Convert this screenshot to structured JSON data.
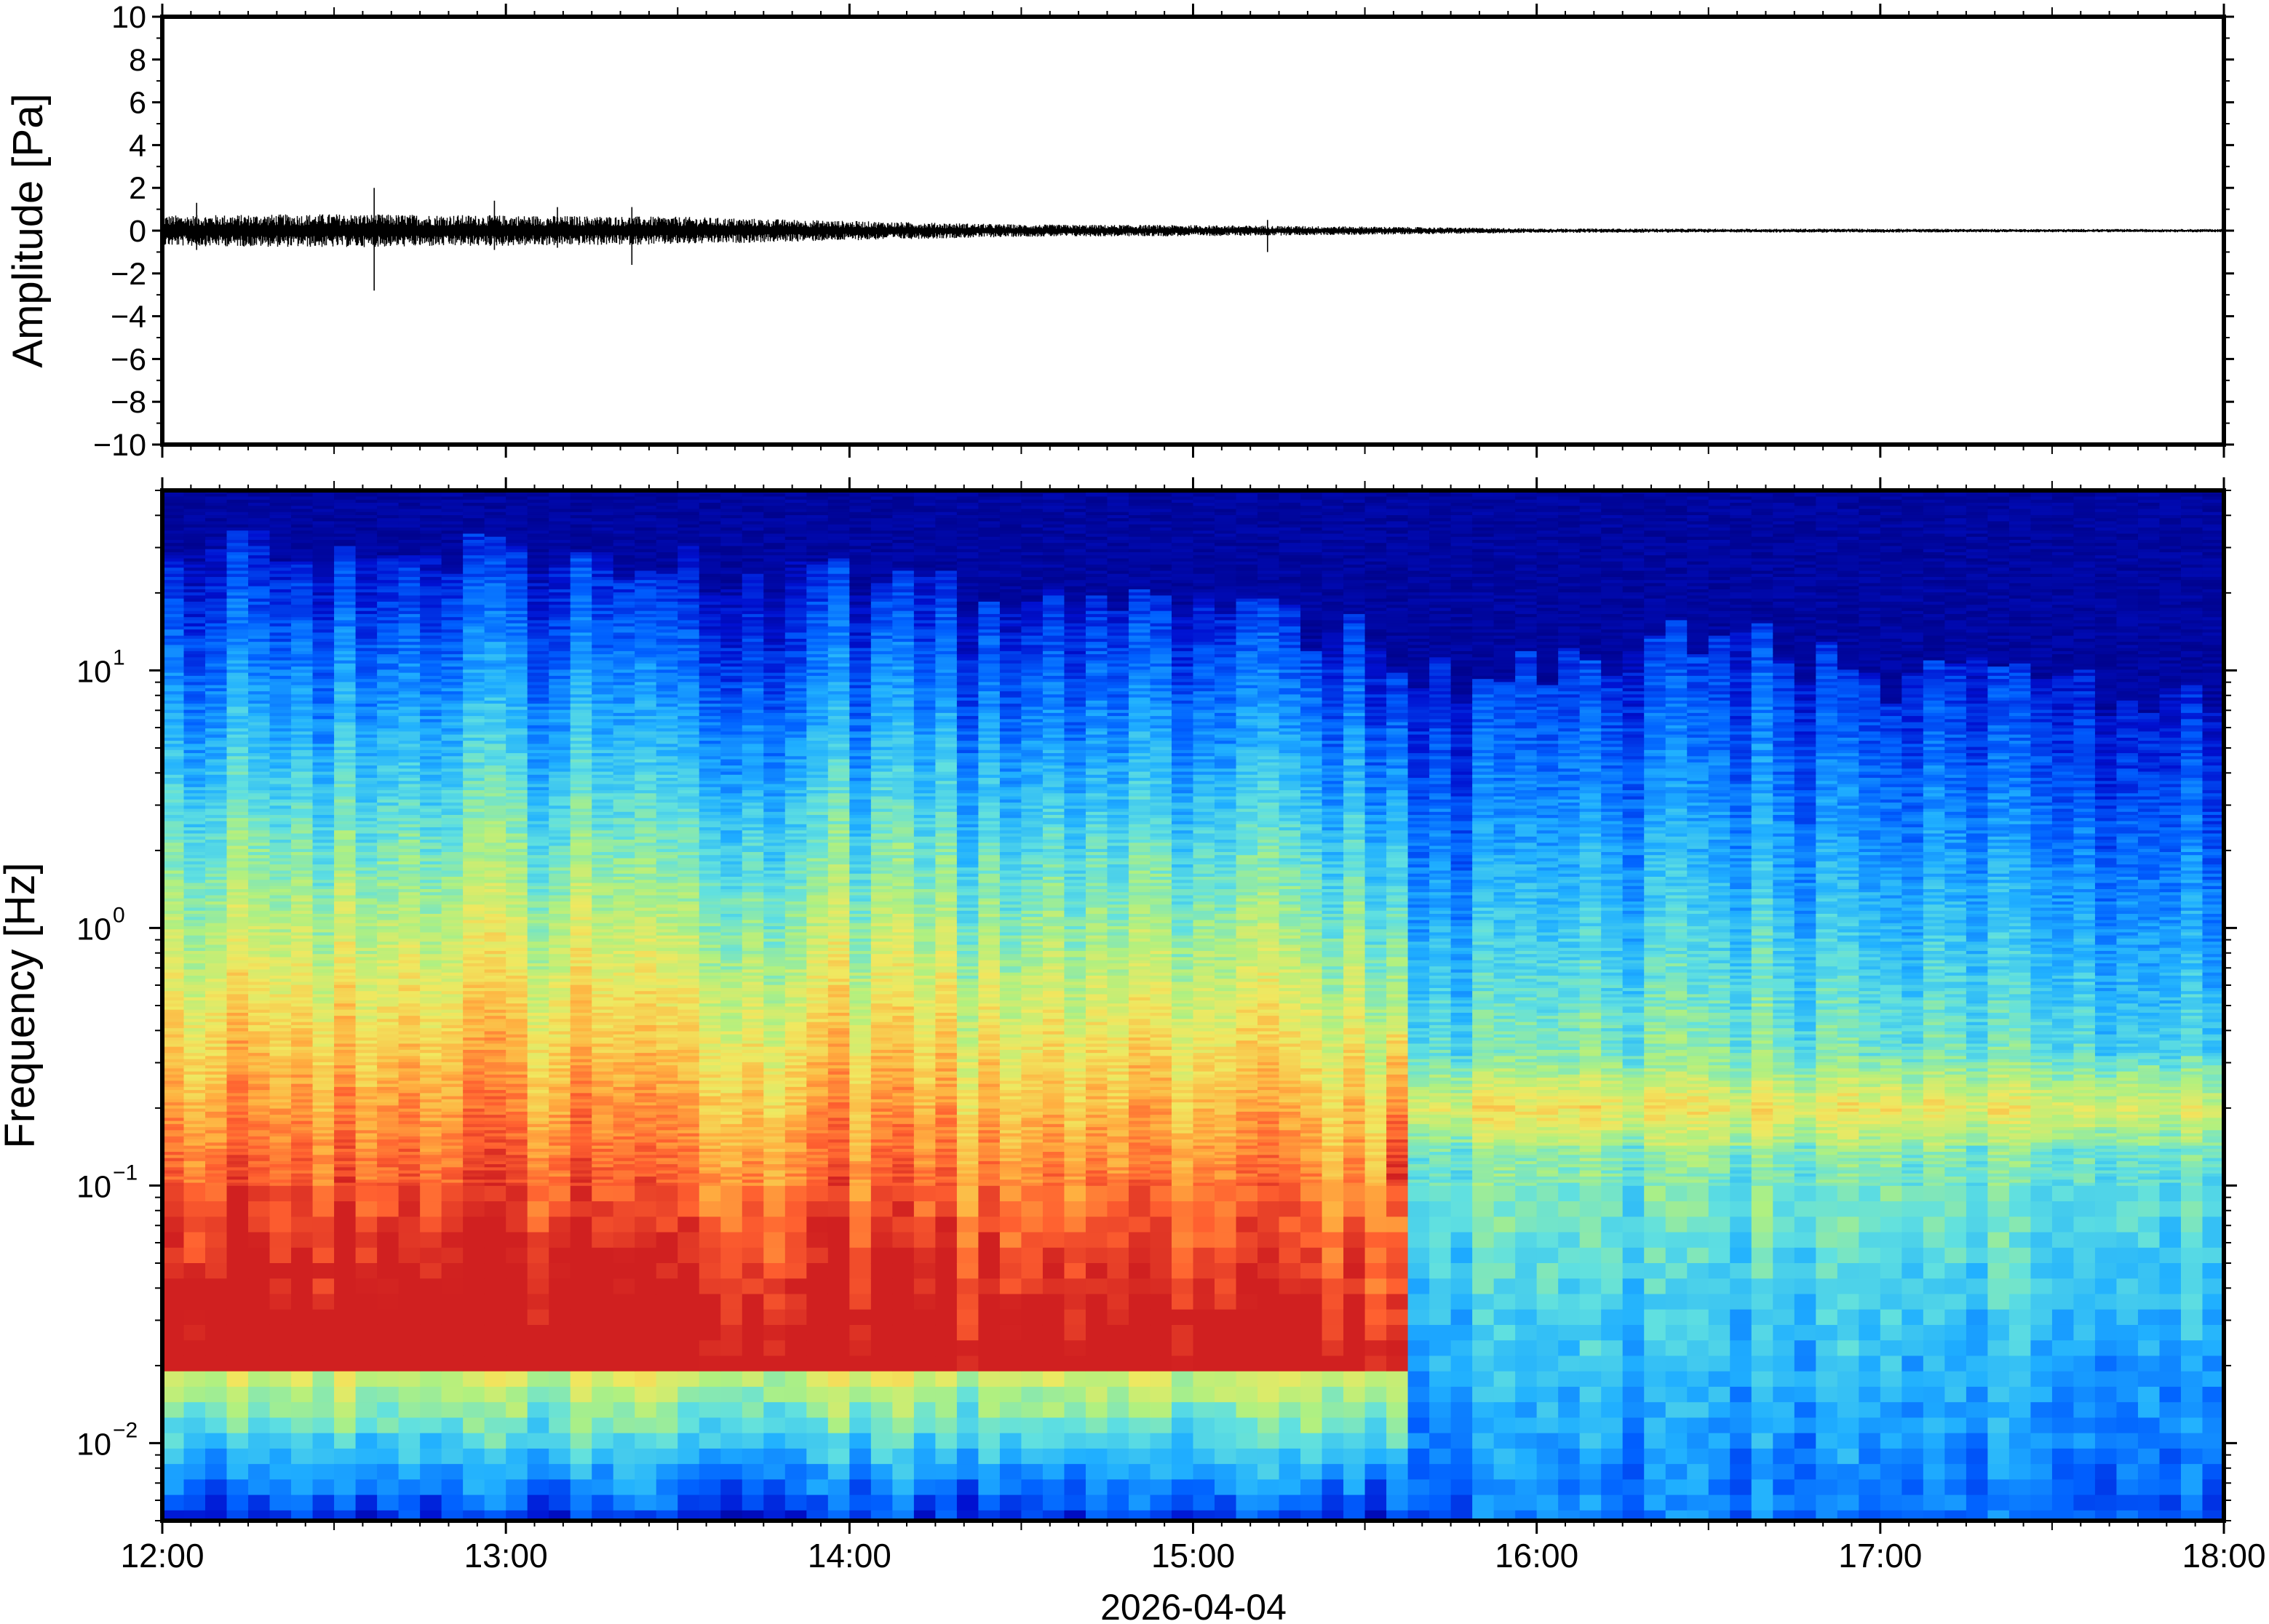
{
  "figure": {
    "date_label": "2026-04-04"
  },
  "chart_data": [
    {
      "type": "line",
      "panel": "waveform",
      "ylabel": "Amplitude [Pa]",
      "xlabel": "",
      "ylim": [
        -10,
        10
      ],
      "yticks": [
        10,
        8,
        6,
        4,
        2,
        0,
        -2,
        -4,
        -6,
        -8,
        -10
      ],
      "ytick_labels": [
        "10",
        "8",
        "6",
        "4",
        "2",
        "0",
        "−2",
        "−4",
        "−6",
        "−8",
        "−10"
      ],
      "x_range": [
        "12:00",
        "18:00"
      ],
      "series": [
        {
          "color": "#000000",
          "envelope_hours": [
            12.0,
            12.5,
            13.0,
            13.5,
            14.0,
            14.5,
            15.0,
            15.5,
            16.0,
            16.5,
            17.0,
            17.5,
            18.0
          ],
          "envelope_pa": [
            0.55,
            0.6,
            0.55,
            0.5,
            0.35,
            0.22,
            0.2,
            0.15,
            0.08,
            0.07,
            0.07,
            0.06,
            0.06
          ],
          "spikes": [
            {
              "time": "12:37",
              "max": 2.0,
              "min": -2.8
            },
            {
              "time": "12:06",
              "max": 1.3,
              "min": -0.9
            },
            {
              "time": "12:58",
              "max": 1.4,
              "min": -0.9
            },
            {
              "time": "13:09",
              "max": 1.1,
              "min": -0.8
            },
            {
              "time": "13:22",
              "max": 1.1,
              "min": -1.6
            },
            {
              "time": "15:13",
              "max": 0.5,
              "min": -1.0
            }
          ]
        }
      ],
      "grid": false
    },
    {
      "type": "heatmap",
      "panel": "spectrogram",
      "ylabel": "Frequency [Hz]",
      "xlabel": "2026-04-04",
      "yscale": "log",
      "ylim_hz": [
        0.005,
        50
      ],
      "yticks": [
        {
          "base": "10",
          "exp": "1",
          "value": 10
        },
        {
          "base": "10",
          "exp": "0",
          "value": 1
        },
        {
          "base": "10",
          "exp": "−1",
          "value": 0.1
        },
        {
          "base": "10",
          "exp": "−2",
          "value": 0.01
        }
      ],
      "x_ticks": [
        "12:00",
        "13:00",
        "14:00",
        "15:00",
        "16:00",
        "17:00",
        "18:00"
      ],
      "colormap": "jet",
      "colormap_stops": [
        "#00007f",
        "#0010d0",
        "#0060ff",
        "#20b0ff",
        "#60e0e0",
        "#b0f080",
        "#f0e860",
        "#ffb040",
        "#ff6030",
        "#d02020"
      ],
      "description_levels": {
        "hours": [
          12.0,
          12.5,
          13.0,
          13.5,
          14.0,
          14.5,
          15.0,
          15.5,
          15.7,
          16.0,
          16.5,
          17.0,
          17.5,
          18.0
        ],
        "noise_floor_hz": [
          30,
          28,
          27,
          25,
          22,
          18,
          17,
          14,
          9,
          10,
          14,
          9,
          9,
          8
        ],
        "peak_band_hz": [
          0.05,
          0.05,
          0.05,
          0.05,
          0.05,
          0.05,
          0.045,
          0.04,
          0.2,
          0.2,
          0.2,
          0.2,
          0.2,
          0.2
        ]
      },
      "grid": false
    }
  ]
}
